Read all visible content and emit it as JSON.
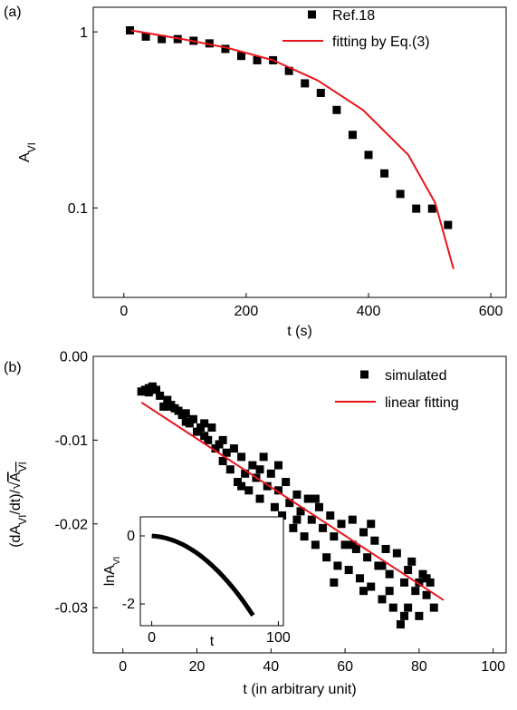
{
  "chart_data": [
    {
      "type": "scatter",
      "label": "(a)",
      "xlabel": "t (s)",
      "ylabel": [
        {
          "text": "A",
          "style": "normal"
        },
        {
          "text": "VI",
          "style": "sub"
        }
      ],
      "xlim": [
        -50,
        625
      ],
      "xticks": [
        0,
        200,
        400,
        600
      ],
      "ylim": [
        0.031,
        1.38
      ],
      "yticks": [
        0.1,
        1
      ],
      "log_y": true,
      "legend": "upper right",
      "series": [
        {
          "name": "Ref.18",
          "mode": "markers",
          "color": "#000000",
          "x": [
            10,
            36,
            62,
            88,
            114,
            140,
            166,
            192,
            218,
            244,
            270,
            296,
            322,
            348,
            374,
            400,
            426,
            452,
            478,
            504,
            530
          ],
          "values": [
            1.02,
            0.94,
            0.91,
            0.91,
            0.89,
            0.86,
            0.8,
            0.73,
            0.69,
            0.69,
            0.6,
            0.51,
            0.45,
            0.36,
            0.26,
            0.2,
            0.157,
            0.12,
            0.099,
            0.099,
            0.08
          ]
        },
        {
          "name": "fitting by Eq.(3)",
          "mode": "line",
          "color": "#e8141b",
          "x": [
            12,
            96,
            170,
            244,
            317,
            391,
            465,
            509,
            539
          ],
          "values": [
            1.02,
            0.91,
            0.81,
            0.69,
            0.53,
            0.36,
            0.2,
            0.107,
            0.045
          ]
        }
      ]
    },
    {
      "type": "scatter",
      "label": "(b)",
      "xlabel": "t (in arbitrary unit)",
      "ylabel": [
        {
          "text": "(dA",
          "style": "normal"
        },
        {
          "text": "VI",
          "style": "sub"
        },
        {
          "text": "/dt)/√",
          "style": "normal"
        },
        {
          "text": "A",
          "style": "over"
        },
        {
          "text": "VI",
          "style": "oversub"
        }
      ],
      "xlim": [
        -8,
        103.5
      ],
      "xticks": [
        0,
        20,
        40,
        60,
        80,
        100
      ],
      "ylim": [
        -0.0354,
        0
      ],
      "yticks": [
        {
          "value": 0,
          "label": "0.00"
        },
        -0.01,
        -0.02,
        -0.03
      ],
      "legend": "upper right",
      "series": [
        {
          "name": "simulated",
          "mode": "markers",
          "color": "#000000",
          "x": [
            5,
            6,
            7,
            8,
            9,
            10,
            11,
            12,
            13,
            14,
            15,
            16,
            17,
            18,
            19,
            20,
            21,
            22,
            23,
            24,
            25,
            26,
            27,
            28,
            29,
            30,
            31,
            32,
            33,
            34,
            35,
            36,
            37,
            38,
            39,
            40,
            41,
            42,
            43,
            44,
            45,
            46,
            47,
            48,
            49,
            50,
            51,
            52,
            53,
            54,
            55,
            56,
            57,
            58,
            59,
            60,
            61,
            62,
            63,
            64,
            65,
            66,
            67,
            68,
            69,
            70,
            71,
            72,
            73,
            74,
            75,
            76,
            77,
            78,
            79,
            80,
            81,
            82,
            83,
            84,
            7,
            12,
            17,
            22,
            27,
            32,
            37,
            42,
            47,
            52,
            57,
            62,
            67,
            72,
            77,
            80,
            82,
            76,
            70,
            65
          ],
          "values": [
            -0.0042,
            -0.004,
            -0.0038,
            -0.0036,
            -0.004,
            -0.0047,
            -0.006,
            -0.006,
            -0.0058,
            -0.0062,
            -0.0065,
            -0.007,
            -0.0068,
            -0.008,
            -0.0075,
            -0.009,
            -0.0085,
            -0.0095,
            -0.01,
            -0.0085,
            -0.011,
            -0.0105,
            -0.0125,
            -0.0115,
            -0.0135,
            -0.011,
            -0.015,
            -0.012,
            -0.014,
            -0.016,
            -0.013,
            -0.0145,
            -0.017,
            -0.012,
            -0.0155,
            -0.014,
            -0.018,
            -0.016,
            -0.019,
            -0.015,
            -0.0175,
            -0.0205,
            -0.0165,
            -0.0185,
            -0.0215,
            -0.017,
            -0.0195,
            -0.0225,
            -0.018,
            -0.0205,
            -0.024,
            -0.019,
            -0.0215,
            -0.025,
            -0.02,
            -0.0225,
            -0.0255,
            -0.0195,
            -0.023,
            -0.0265,
            -0.021,
            -0.024,
            -0.0275,
            -0.022,
            -0.025,
            -0.029,
            -0.023,
            -0.026,
            -0.03,
            -0.0235,
            -0.032,
            -0.027,
            -0.03,
            -0.0245,
            -0.028,
            -0.031,
            -0.026,
            -0.0285,
            -0.027,
            -0.03,
            -0.0043,
            -0.0052,
            -0.0078,
            -0.008,
            -0.01,
            -0.0155,
            -0.0135,
            -0.013,
            -0.0195,
            -0.017,
            -0.027,
            -0.0225,
            -0.02,
            -0.028,
            -0.0255,
            -0.027,
            -0.0265,
            -0.031,
            -0.025,
            -0.028
          ]
        },
        {
          "name": "linear fitting",
          "mode": "line",
          "color": "#e8141b",
          "x": [
            5,
            86.6
          ],
          "values": [
            -0.0055,
            -0.0291
          ]
        }
      ]
    },
    {
      "type": "line",
      "xlabel": "t",
      "ylabel": [
        {
          "text": "lnA",
          "style": "normal"
        },
        {
          "text": "VI",
          "style": "sub"
        }
      ],
      "xlim": [
        -9,
        104
      ],
      "xticks": [
        0,
        100
      ],
      "ylim": [
        -2.64,
        0.56
      ],
      "yticks": [
        -2,
        0
      ],
      "series": [
        {
          "mode": "line",
          "color": "#000000",
          "x": [
            0,
            4,
            8,
            12,
            16,
            20,
            24,
            28,
            32,
            36,
            40,
            44,
            48,
            52,
            56,
            60,
            64,
            68,
            72,
            76,
            80
          ],
          "values": [
            0,
            -0.013,
            -0.038,
            -0.073,
            -0.119,
            -0.176,
            -0.244,
            -0.323,
            -0.412,
            -0.513,
            -0.624,
            -0.746,
            -0.879,
            -1.023,
            -1.178,
            -1.344,
            -1.521,
            -1.708,
            -1.907,
            -2.116,
            -2.336
          ]
        }
      ]
    }
  ]
}
